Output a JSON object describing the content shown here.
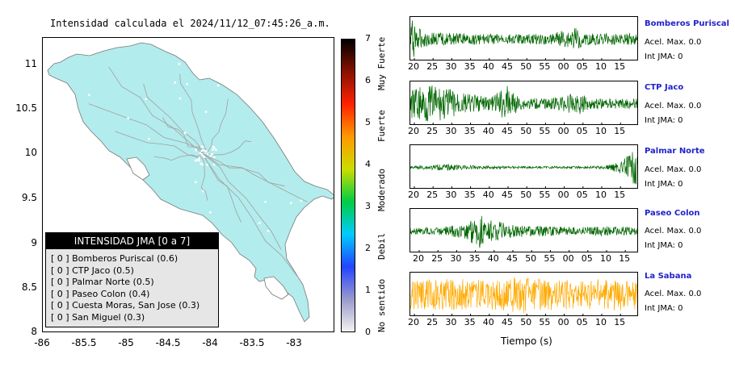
{
  "map": {
    "title": "Intensidad calculada el 2024/11/12_07:45:26_a.m.",
    "lat_ticks": [
      "11",
      "10.5",
      "10",
      "9.5",
      "9",
      "8.5",
      "8"
    ],
    "lon_ticks": [
      "-86",
      "-85.5",
      "-85",
      "-84.5",
      "-84",
      "-83.5",
      "-83"
    ],
    "land_color": "#b3ecec",
    "road_color": "#a0a0a0"
  },
  "colorbar": {
    "ticks": [
      "0",
      "1",
      "2",
      "3",
      "4",
      "5",
      "6",
      "7"
    ],
    "labels": [
      "No sentido",
      "Debil",
      "Moderado",
      "Fuerte",
      "Muy Fuerte"
    ],
    "colors": [
      "#f2f2f2",
      "#9999cc",
      "#2244ff",
      "#00ccff",
      "#00cc44",
      "#ccdd00",
      "#ff9900",
      "#ff2200",
      "#881100",
      "#000000"
    ]
  },
  "legend": {
    "title": "INTENSIDAD JMA [0 a 7]",
    "items": [
      "[ 0 ]  Bomberos Puriscal (0.6)",
      "[ 0 ]  CTP Jaco (0.5)",
      "[ 0 ]  Palmar Norte (0.5)",
      "[ 0 ]  Paseo Colon (0.4)",
      "[ 0 ]  Cuesta Moras, San Jose (0.3)",
      "[ 0 ]  San Miguel (0.3)"
    ]
  },
  "traces": {
    "axis_label": "Tiempo (s)",
    "stations": [
      {
        "name": "Bomberos Puriscal",
        "accel": "Acel. Max. 0.0",
        "jma": "Int JMA: 0",
        "color": "#006600",
        "ticks": [
          "20",
          "25",
          "30",
          "35",
          "40",
          "45",
          "50",
          "55",
          "00",
          "05",
          "10",
          "15"
        ],
        "tick_offset": 0
      },
      {
        "name": "CTP Jaco",
        "accel": "Acel. Max. 0.0",
        "jma": "Int JMA: 0",
        "color": "#006600",
        "ticks": [
          "20",
          "25",
          "30",
          "35",
          "40",
          "45",
          "50",
          "55",
          "00",
          "05",
          "10",
          "15"
        ],
        "tick_offset": 0
      },
      {
        "name": "Palmar Norte",
        "accel": "Acel. Max. 0.0",
        "jma": "Int JMA: 0",
        "color": "#006600",
        "ticks": [
          "20",
          "25",
          "30",
          "35",
          "40",
          "45",
          "50",
          "55",
          "00",
          "05",
          "10",
          "15"
        ],
        "tick_offset": 0
      },
      {
        "name": "Paseo Colon",
        "accel": "Acel. Max. 0.0",
        "jma": "Int JMA: 0",
        "color": "#006600",
        "ticks": [
          "20",
          "25",
          "30",
          "35",
          "40",
          "45",
          "50",
          "55",
          "00",
          "05",
          "10",
          "15"
        ],
        "tick_offset": 1
      },
      {
        "name": "La Sabana",
        "accel": "Acel. Max. 0.0",
        "jma": "Int JMA: 0",
        "color": "#ffaa00",
        "ticks": [
          "20",
          "25",
          "30",
          "35",
          "40",
          "45",
          "50",
          "55",
          "00",
          "05",
          "10",
          "15"
        ],
        "tick_offset": 0
      }
    ]
  }
}
